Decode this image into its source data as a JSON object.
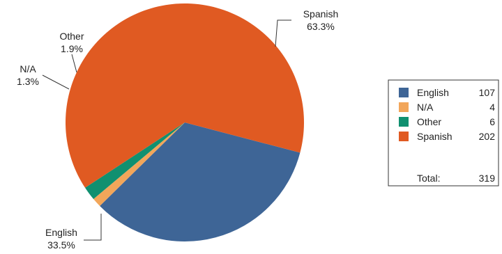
{
  "chart_data": {
    "type": "pie",
    "slices": [
      {
        "label": "English",
        "value": 107,
        "percent": "33.5%",
        "color": "#3e6596"
      },
      {
        "label": "N/A",
        "value": 4,
        "percent": "1.3%",
        "color": "#f2a65a"
      },
      {
        "label": "Other",
        "value": 6,
        "percent": "1.9%",
        "color": "#109070"
      },
      {
        "label": "Spanish",
        "value": 202,
        "percent": "63.3%",
        "color": "#e05a22"
      }
    ],
    "legend": {
      "placement": "right",
      "total_label": "Total:",
      "total_value": "319"
    }
  }
}
